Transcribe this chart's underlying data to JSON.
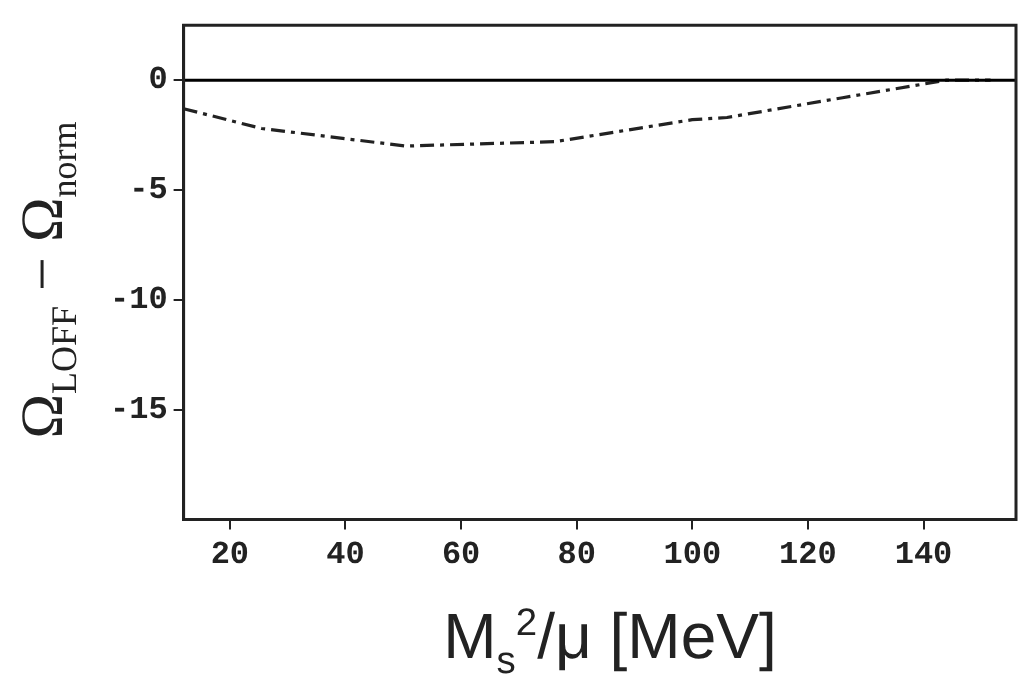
{
  "chart_data": {
    "type": "line",
    "xlabel": "M$_{s}$$^{2}$/μ [MeV]",
    "ylabel": "Ω$_{LOFF}$ − Ω$_{norm}$",
    "x": [
      12,
      25.5,
      50.4,
      76.3,
      100,
      106,
      126,
      144,
      151.6
    ],
    "series": [
      {
        "color": "#222222",
        "values": [
          -1.3,
          -2.2,
          -3.0,
          -2.8,
          -1.8,
          -1.7,
          -0.8,
          0,
          0
        ]
      }
    ],
    "xlim": [
      12,
      156
    ],
    "xticks": [
      20,
      40,
      60,
      80,
      100,
      120,
      140
    ],
    "ylim": [
      -20,
      2.5
    ],
    "yticks": [
      0,
      -5,
      -10,
      -15
    ],
    "ref_lines": [
      {
        "axis": "y",
        "value": 0,
        "color": "#000000",
        "line_style": "solid"
      }
    ],
    "grid": false,
    "legend": false,
    "marker": "none",
    "line_style": "dashed"
  }
}
